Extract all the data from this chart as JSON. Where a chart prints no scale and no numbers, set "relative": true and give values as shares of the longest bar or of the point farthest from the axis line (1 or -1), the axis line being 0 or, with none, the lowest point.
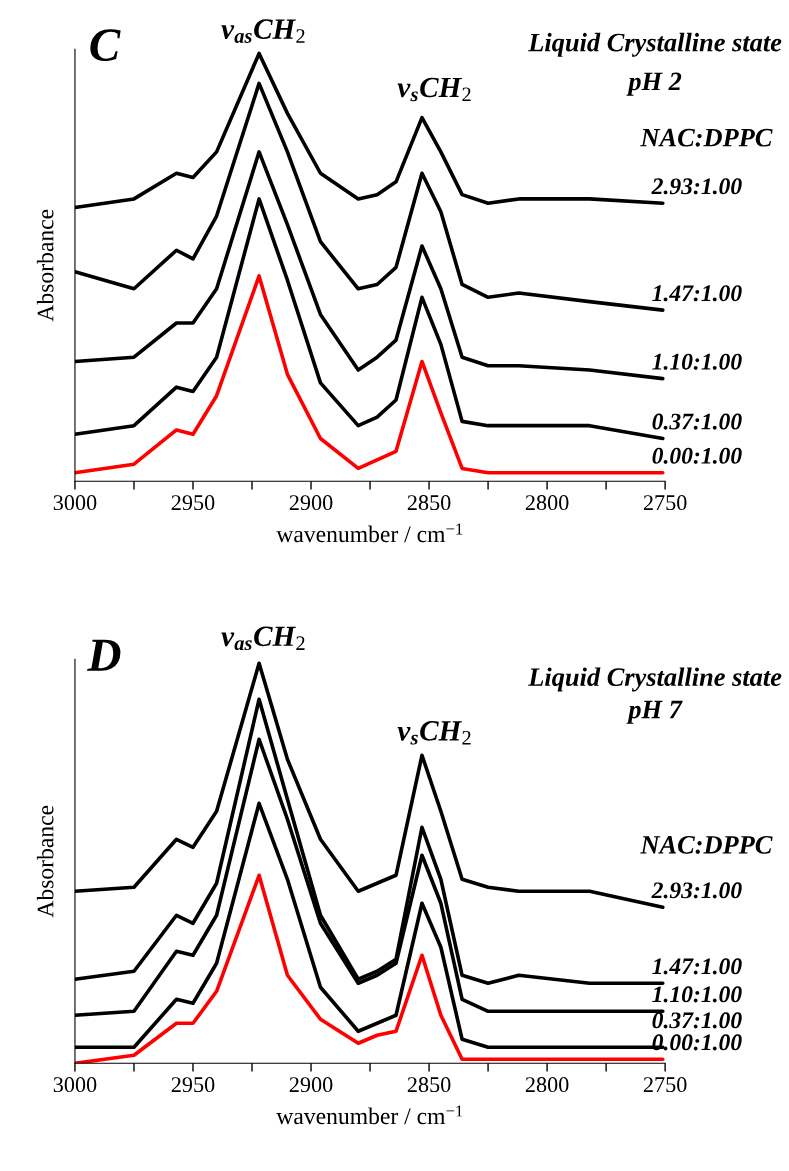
{
  "chart_data": [
    {
      "type": "line",
      "title": "Liquid Crystalline state",
      "subtitle": "pH 2",
      "legend_title": "NAC:DPPC",
      "xlabel": "wavenumber / cm$^{−1}$",
      "ylabel": "Absorbance",
      "relative": true,
      "tick_labels": "x",
      "grid": false,
      "legend": false,
      "marker": "none",
      "line_style": "solid",
      "annotations": [
        "C",
        "ν$_{as}$CH$_{2}$",
        "ν$_{s}$CH$_{2}$"
      ],
      "x": [
        3000,
        2975,
        2957,
        2950,
        2940,
        2922,
        2910,
        2896,
        2880,
        2872,
        2864,
        2853,
        2845,
        2836,
        2825,
        2812,
        2782,
        2751
      ],
      "xlim": [
        3000,
        2750
      ],
      "xticks": [
        3000,
        {
          "value": 2975,
          "label": null
        },
        2950,
        {
          "value": 2925,
          "label": null
        },
        2900,
        {
          "value": 2875,
          "label": null
        },
        2850,
        {
          "value": 2825,
          "label": null
        },
        2800,
        {
          "value": 2775,
          "label": null
        },
        2750
      ],
      "series": [
        {
          "name": "2.93:1.00",
          "color": "#000000",
          "values": [
            0.64,
            0.66,
            0.72,
            0.71,
            0.77,
            1.0,
            0.86,
            0.72,
            0.66,
            0.67,
            0.7,
            0.85,
            0.77,
            0.67,
            0.65,
            0.66,
            0.66,
            0.65
          ]
        },
        {
          "name": "1.47:1.00",
          "color": "#000000",
          "values": [
            0.49,
            0.45,
            0.54,
            0.52,
            0.62,
            0.93,
            0.77,
            0.56,
            0.45,
            0.46,
            0.5,
            0.72,
            0.63,
            0.46,
            0.43,
            0.44,
            0.42,
            0.4
          ]
        },
        {
          "name": "1.10:1.00",
          "color": "#000000",
          "values": [
            0.28,
            0.29,
            0.37,
            0.37,
            0.45,
            0.77,
            0.6,
            0.39,
            0.26,
            0.29,
            0.33,
            0.55,
            0.45,
            0.29,
            0.27,
            0.27,
            0.26,
            0.24
          ]
        },
        {
          "name": "0.37:1.00",
          "color": "#000000",
          "values": [
            0.11,
            0.13,
            0.22,
            0.21,
            0.29,
            0.66,
            0.47,
            0.23,
            0.13,
            0.15,
            0.19,
            0.43,
            0.32,
            0.14,
            0.13,
            0.13,
            0.13,
            0.1
          ]
        },
        {
          "name": "0.00:1.00",
          "color": "#ff0000",
          "values": [
            0.02,
            0.04,
            0.12,
            0.11,
            0.2,
            0.48,
            0.25,
            0.1,
            0.03,
            0.05,
            0.07,
            0.28,
            0.16,
            0.03,
            0.02,
            0.02,
            0.02,
            0.02
          ]
        }
      ]
    },
    {
      "type": "line",
      "title": "Liquid Crystalline state",
      "subtitle": "pH 7",
      "legend_title": "NAC:DPPC",
      "xlabel": "wavenumber / cm$^{−1}$",
      "ylabel": "Absorbance",
      "relative": true,
      "tick_labels": "x",
      "grid": false,
      "legend": false,
      "marker": "none",
      "line_style": "solid",
      "annotations": [
        "D",
        "ν$_{as}$CH$_{2}$",
        "ν$_{s}$CH$_{2}$"
      ],
      "x": [
        3000,
        2975,
        2957,
        2950,
        2940,
        2922,
        2910,
        2896,
        2880,
        2872,
        2864,
        2853,
        2845,
        2836,
        2825,
        2812,
        2782,
        2751
      ],
      "xlim": [
        3000,
        2750
      ],
      "xticks": [
        3000,
        {
          "value": 2975,
          "label": null
        },
        2950,
        {
          "value": 2925,
          "label": null
        },
        2900,
        {
          "value": 2875,
          "label": null
        },
        2850,
        {
          "value": 2825,
          "label": null
        },
        2800,
        {
          "value": 2775,
          "label": null
        },
        2750
      ],
      "series": [
        {
          "name": "2.93:1.00",
          "color": "#000000",
          "values": [
            0.43,
            0.44,
            0.56,
            0.54,
            0.63,
            1.0,
            0.76,
            0.56,
            0.43,
            0.45,
            0.47,
            0.77,
            0.63,
            0.46,
            0.44,
            0.43,
            0.43,
            0.39
          ]
        },
        {
          "name": "1.47:1.00",
          "color": "#000000",
          "values": [
            0.21,
            0.23,
            0.37,
            0.35,
            0.45,
            0.91,
            0.66,
            0.37,
            0.21,
            0.23,
            0.26,
            0.59,
            0.46,
            0.22,
            0.2,
            0.22,
            0.2,
            0.2
          ]
        },
        {
          "name": "1.10:1.00",
          "color": "#000000",
          "values": [
            0.12,
            0.13,
            0.28,
            0.27,
            0.37,
            0.81,
            0.61,
            0.35,
            0.2,
            0.22,
            0.25,
            0.52,
            0.4,
            0.16,
            0.13,
            0.13,
            0.13,
            0.13
          ]
        },
        {
          "name": "0.37:1.00",
          "color": "#000000",
          "values": [
            0.04,
            0.04,
            0.16,
            0.15,
            0.25,
            0.65,
            0.46,
            0.19,
            0.08,
            0.1,
            0.12,
            0.4,
            0.29,
            0.06,
            0.04,
            0.04,
            0.04,
            0.04
          ]
        },
        {
          "name": "0.00:1.00",
          "color": "#ff0000",
          "values": [
            0.0,
            0.02,
            0.1,
            0.1,
            0.18,
            0.47,
            0.22,
            0.11,
            0.05,
            0.07,
            0.08,
            0.27,
            0.12,
            0.01,
            0.01,
            0.01,
            0.01,
            0.01
          ]
        }
      ]
    }
  ]
}
